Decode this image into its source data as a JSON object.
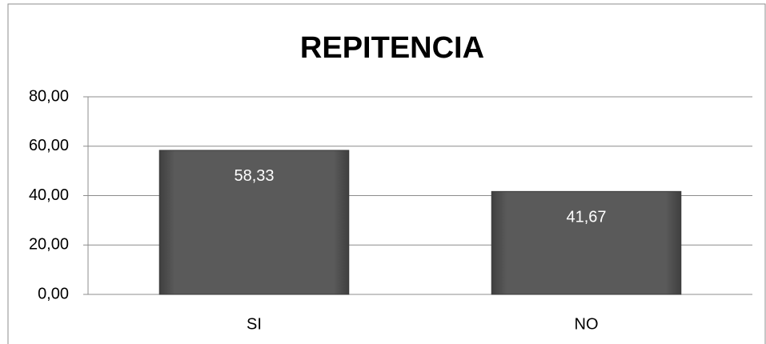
{
  "chart_data": {
    "type": "bar",
    "title": "REPITENCIA",
    "categories": [
      "SI",
      "NO"
    ],
    "values": [
      58.33,
      41.67
    ],
    "value_labels": [
      "58,33",
      "41,67"
    ],
    "color": "#595959",
    "ylim": [
      0,
      80
    ],
    "yticks": [
      {
        "value": 0,
        "label": "0,00"
      },
      {
        "value": 20,
        "label": "20,00"
      },
      {
        "value": 40,
        "label": "40,00"
      },
      {
        "value": 60,
        "label": "60,00"
      },
      {
        "value": 80,
        "label": "80,00"
      }
    ],
    "grid": true
  }
}
